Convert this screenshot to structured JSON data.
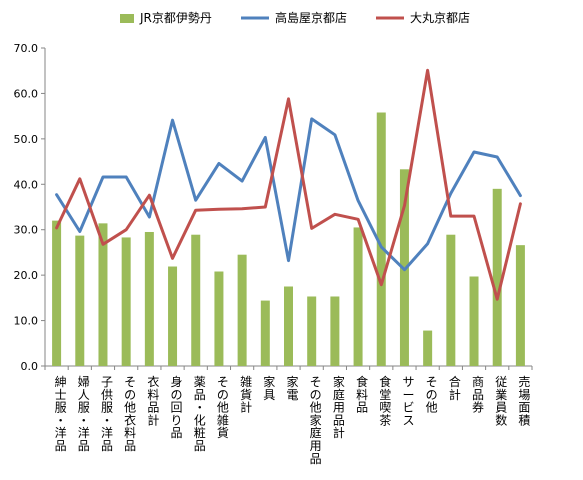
{
  "chart_data": {
    "type": "bar",
    "categories": [
      "紳士服・洋品",
      "婦人服・洋品",
      "子供服・洋品",
      "その他衣料品",
      "衣料品計",
      "身の回り品",
      "薬品・化粧品",
      "その他雑貨",
      "雑貨計",
      "家具",
      "家電",
      "その他家庭用品",
      "家庭用品計",
      "食料品",
      "食堂喫茶",
      "サービス",
      "その他",
      "合計",
      "商品券",
      "従業員数",
      "売場面積"
    ],
    "series": [
      {
        "name": "JR京都伊勢丹",
        "kind": "bar",
        "color": "#9BBB59",
        "values": [
          32.0,
          28.7,
          31.4,
          28.3,
          29.5,
          21.9,
          28.9,
          20.8,
          24.5,
          14.4,
          17.5,
          15.3,
          15.3,
          30.5,
          55.8,
          43.3,
          7.8,
          28.9,
          19.7,
          39.0,
          26.6
        ]
      },
      {
        "name": "高島屋京都店",
        "kind": "line",
        "color": "#4F81BD",
        "values": [
          37.7,
          29.6,
          41.6,
          41.6,
          32.8,
          54.1,
          36.5,
          44.6,
          40.7,
          50.3,
          23.2,
          54.4,
          50.9,
          36.4,
          26.2,
          21.2,
          26.9,
          38.0,
          47.1,
          46.0,
          37.5
        ]
      },
      {
        "name": "大丸京都店",
        "kind": "line",
        "color": "#C0504D",
        "values": [
          30.4,
          41.2,
          26.8,
          30.0,
          37.6,
          23.7,
          34.3,
          34.5,
          34.6,
          35.0,
          58.8,
          30.3,
          33.4,
          32.3,
          17.9,
          35.3,
          65.1,
          33.0,
          33.0,
          14.7,
          35.7
        ]
      }
    ],
    "ylim": [
      0,
      70
    ],
    "yticks": [
      "0.0",
      "10.0",
      "20.0",
      "30.0",
      "40.0",
      "50.0",
      "60.0",
      "70.0"
    ],
    "legend_position": "top",
    "grid": false
  }
}
